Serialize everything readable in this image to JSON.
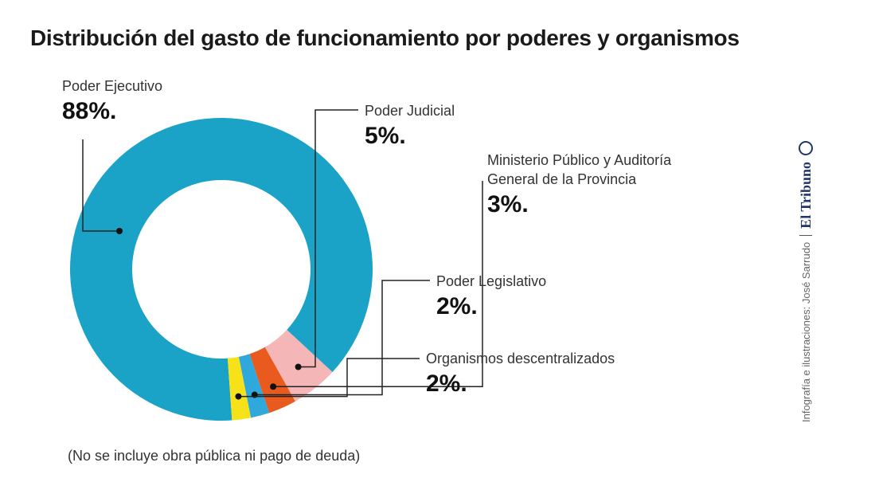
{
  "chart_data": {
    "type": "pie",
    "donut": true,
    "title": "Distribución del gasto de funcionamiento por poderes y organismos",
    "slices": [
      {
        "name": "Poder Ejecutivo",
        "value": 88,
        "label": "88%.",
        "color": "#1aa3c6"
      },
      {
        "name": "Poder Judicial",
        "value": 5,
        "label": "5%.",
        "color": "#f4b6b6"
      },
      {
        "name": "Ministerio Público y Auditoría General de la Provincia",
        "name_lines": [
          "Ministerio Público y Auditoría",
          "General de la Provincia"
        ],
        "value": 3,
        "label": "3%.",
        "color": "#e85a1e"
      },
      {
        "name": "Poder Legislativo",
        "value": 2,
        "label": "2%.",
        "color": "#2fa9dc"
      },
      {
        "name": "Organismos descentralizados",
        "value": 2,
        "label": "2%.",
        "color": "#f7e21a"
      }
    ],
    "note": "(No se incluye obra pública ni pago de deuda)"
  },
  "credit": {
    "text": "Infografía e ilustraciones: José Sarrudo",
    "logo": "El Tribuno",
    "logo_icon": "tribuno-logo-icon"
  }
}
